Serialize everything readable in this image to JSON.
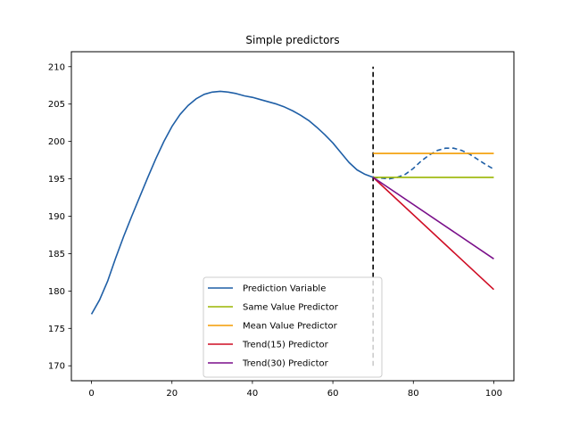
{
  "chart_data": {
    "type": "line",
    "title": "Simple predictors",
    "xlabel": "",
    "ylabel": "",
    "xlim": [
      -5,
      105
    ],
    "ylim": [
      168,
      212
    ],
    "xticks": [
      0,
      20,
      40,
      60,
      80,
      100
    ],
    "yticks": [
      170,
      175,
      180,
      185,
      190,
      195,
      200,
      205,
      210
    ],
    "grid": false,
    "legend_position": "lower center",
    "split_marker": {
      "x": 70,
      "y_from": 170,
      "y_to": 210,
      "color": "#000000",
      "style": "dashed"
    },
    "series": [
      {
        "name": "Prediction Variable",
        "color": "#1f5fa6",
        "style": "solid",
        "x": [
          0,
          2,
          4,
          6,
          8,
          10,
          12,
          14,
          16,
          18,
          20,
          22,
          24,
          26,
          28,
          30,
          32,
          34,
          36,
          38,
          40,
          42,
          44,
          46,
          48,
          50,
          52,
          54,
          56,
          58,
          60,
          62,
          64,
          66,
          68,
          70
        ],
        "y": [
          176.9,
          178.8,
          181.3,
          184.4,
          187.3,
          190.0,
          192.6,
          195.2,
          197.7,
          200.0,
          202.0,
          203.6,
          204.8,
          205.7,
          206.3,
          206.6,
          206.7,
          206.6,
          206.4,
          206.1,
          205.9,
          205.6,
          205.3,
          205.0,
          204.6,
          204.1,
          203.5,
          202.8,
          201.9,
          200.9,
          199.8,
          198.5,
          197.2,
          196.2,
          195.6,
          195.2
        ]
      },
      {
        "name": "",
        "color": "#1f5fa6",
        "style": "dashed",
        "legend": false,
        "x": [
          70,
          72,
          74,
          76,
          78,
          80,
          82,
          84,
          86,
          88,
          90,
          92,
          94,
          96,
          98,
          100
        ],
        "y": [
          195.2,
          195.1,
          195.0,
          195.2,
          195.6,
          196.4,
          197.4,
          198.2,
          198.8,
          199.1,
          199.1,
          198.8,
          198.3,
          197.6,
          196.9,
          196.3
        ]
      },
      {
        "name": "Same Value Predictor",
        "color": "#9ab600",
        "style": "solid",
        "x": [
          70,
          100
        ],
        "y": [
          195.2,
          195.2
        ]
      },
      {
        "name": "Mean Value Predictor",
        "color": "#f39b00",
        "style": "solid",
        "x": [
          70,
          100
        ],
        "y": [
          198.4,
          198.4
        ]
      },
      {
        "name": "Trend(15) Predictor",
        "color": "#cf0d24",
        "style": "solid",
        "x": [
          70,
          100
        ],
        "y": [
          195.2,
          180.2
        ]
      },
      {
        "name": "Trend(30) Predictor",
        "color": "#7a0f8a",
        "style": "solid",
        "x": [
          70,
          100
        ],
        "y": [
          195.2,
          184.3
        ]
      }
    ]
  }
}
